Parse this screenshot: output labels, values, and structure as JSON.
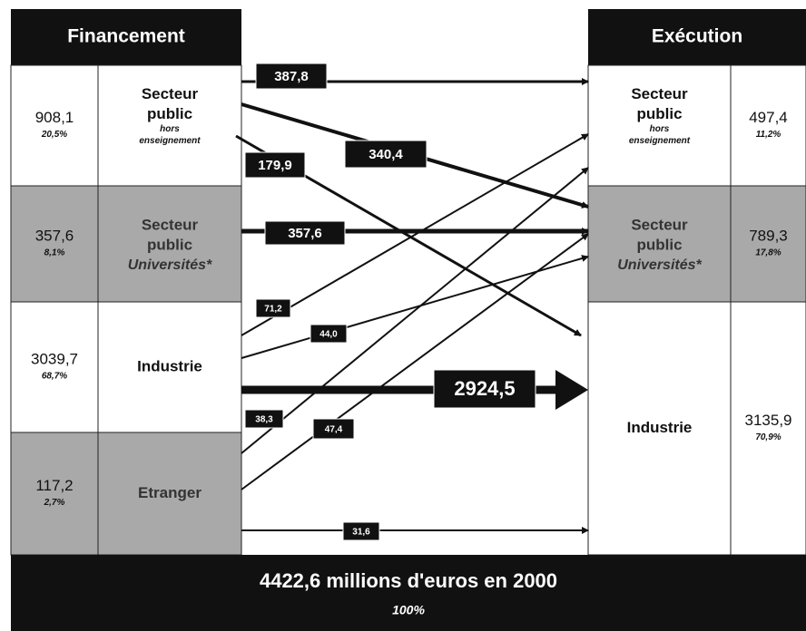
{
  "financement": {
    "title": "Financement",
    "rows": [
      {
        "value": "908,1",
        "share": "20,5%",
        "label": [
          "Secteur",
          "public"
        ],
        "sublabel": [
          "hors",
          "enseignement"
        ]
      },
      {
        "value": "357,6",
        "share": "8,1%",
        "label": [
          "Secteur",
          "public"
        ],
        "sublabel": [
          "Universités*"
        ]
      },
      {
        "value": "3039,7",
        "share": "68,7%",
        "label": [
          "Industrie"
        ],
        "sublabel": []
      },
      {
        "value": "117,2",
        "share": "2,7%",
        "label": [
          "Etranger"
        ],
        "sublabel": []
      }
    ]
  },
  "execution": {
    "title": "Exécution",
    "rows": [
      {
        "value": "497,4",
        "share": "11,2%",
        "label": [
          "Secteur",
          "public"
        ],
        "sublabel": [
          "hors",
          "enseignement"
        ]
      },
      {
        "value": "789,3",
        "share": "17,8%",
        "label": [
          "Secteur",
          "public"
        ],
        "sublabel": [
          "Universités*"
        ]
      },
      {
        "value": "3135,9",
        "share": "70,9%",
        "label": [
          "Industrie"
        ],
        "sublabel": []
      }
    ]
  },
  "flows": [
    "387,8",
    "340,4",
    "179,9",
    "357,6",
    "71,2",
    "44,0",
    "2924,5",
    "38,3",
    "47,4",
    "31,6"
  ],
  "total": {
    "label": "4422,6 millions d'euros en 2000",
    "share": "100%"
  }
}
